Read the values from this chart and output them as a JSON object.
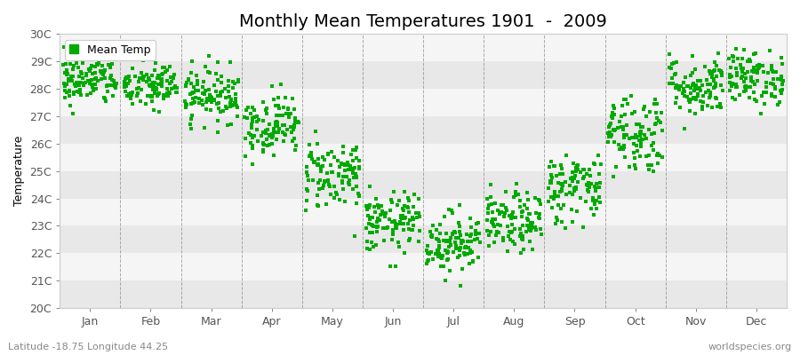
{
  "title": "Monthly Mean Temperatures 1901  -  2009",
  "ylabel": "Temperature",
  "ylim": [
    20,
    30
  ],
  "ytick_labels": [
    "20C",
    "21C",
    "22C",
    "23C",
    "24C",
    "25C",
    "26C",
    "27C",
    "28C",
    "29C",
    "30C"
  ],
  "ytick_values": [
    20,
    21,
    22,
    23,
    24,
    25,
    26,
    27,
    28,
    29,
    30
  ],
  "months": [
    "Jan",
    "Feb",
    "Mar",
    "Apr",
    "May",
    "Jun",
    "Jul",
    "Aug",
    "Sep",
    "Oct",
    "Nov",
    "Dec"
  ],
  "monthly_means": [
    28.3,
    28.1,
    27.8,
    26.7,
    24.9,
    23.1,
    22.4,
    23.1,
    24.4,
    26.4,
    28.1,
    28.4
  ],
  "monthly_stds": [
    0.45,
    0.45,
    0.5,
    0.55,
    0.65,
    0.55,
    0.55,
    0.55,
    0.65,
    0.75,
    0.55,
    0.5
  ],
  "n_years": 109,
  "marker_color": "#00aa00",
  "marker": "s",
  "marker_size": 4,
  "background_color": "#ffffff",
  "band_color_odd": "#e8e8e8",
  "band_color_even": "#f5f5f5",
  "legend_label": "Mean Temp",
  "footnote_left": "Latitude -18.75 Longitude 44.25",
  "footnote_right": "worldspecies.org",
  "title_fontsize": 14,
  "axis_fontsize": 9,
  "footnote_fontsize": 8,
  "dashed_line_color": "#888888"
}
